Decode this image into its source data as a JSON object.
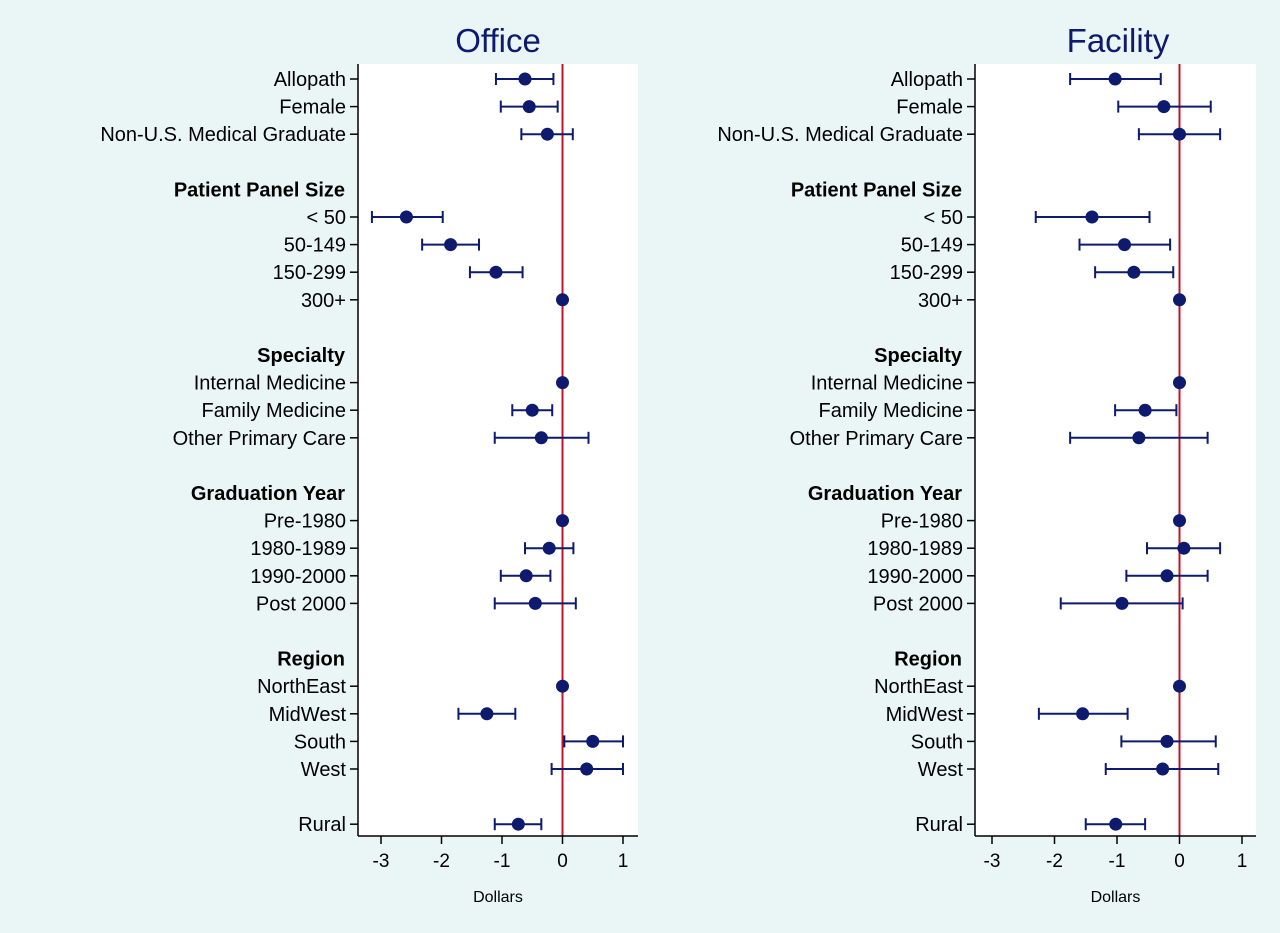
{
  "colors": {
    "background": "#eaf5f5",
    "plot_area": "#ffffff",
    "marker": "#0d1a6e",
    "reference_line": "#c0152a",
    "text": "#000000",
    "title": "#0d1a6e"
  },
  "chart_data": [
    {
      "type": "scatter",
      "style": "coefficient plot with horizontal 95% confidence intervals",
      "title": "Office",
      "xlabel": "Dollars",
      "xticks": [
        "-3",
        "-2",
        "-1",
        "0",
        "1"
      ],
      "xlim": [
        -3.3,
        1.25
      ],
      "reference_x": 0,
      "grid": false,
      "legend": "none",
      "rows": [
        {
          "label": "Allopath",
          "heading": false,
          "estimate": -0.62,
          "ci": [
            -1.1,
            -0.15
          ]
        },
        {
          "label": "Female",
          "heading": false,
          "estimate": -0.55,
          "ci": [
            -1.02,
            -0.08
          ]
        },
        {
          "label": "Non-U.S. Medical Graduate",
          "heading": false,
          "estimate": -0.25,
          "ci": [
            -0.68,
            0.17
          ]
        },
        {
          "label": "",
          "spacer": true
        },
        {
          "label": "Patient Panel Size",
          "heading": true
        },
        {
          "label": "< 50",
          "heading": false,
          "estimate": -2.58,
          "ci": [
            -3.15,
            -1.98
          ]
        },
        {
          "label": "50-149",
          "heading": false,
          "estimate": -1.85,
          "ci": [
            -2.32,
            -1.38
          ]
        },
        {
          "label": "150-299",
          "heading": false,
          "estimate": -1.1,
          "ci": [
            -1.53,
            -0.66
          ]
        },
        {
          "label": "300+",
          "heading": false,
          "estimate": 0,
          "ci": [
            0,
            0
          ]
        },
        {
          "label": "",
          "spacer": true
        },
        {
          "label": "Specialty",
          "heading": true
        },
        {
          "label": "Internal Medicine",
          "heading": false,
          "estimate": 0,
          "ci": [
            0,
            0
          ]
        },
        {
          "label": "Family Medicine",
          "heading": false,
          "estimate": -0.5,
          "ci": [
            -0.83,
            -0.17
          ]
        },
        {
          "label": "Other Primary Care",
          "heading": false,
          "estimate": -0.35,
          "ci": [
            -1.12,
            0.43
          ]
        },
        {
          "label": "",
          "spacer": true
        },
        {
          "label": "Graduation Year",
          "heading": true
        },
        {
          "label": "Pre-1980",
          "heading": false,
          "estimate": 0,
          "ci": [
            0,
            0
          ]
        },
        {
          "label": "1980-1989",
          "heading": false,
          "estimate": -0.22,
          "ci": [
            -0.62,
            0.18
          ]
        },
        {
          "label": "1990-2000",
          "heading": false,
          "estimate": -0.6,
          "ci": [
            -1.02,
            -0.2
          ]
        },
        {
          "label": "Post 2000",
          "heading": false,
          "estimate": -0.45,
          "ci": [
            -1.12,
            0.22
          ]
        },
        {
          "label": "",
          "spacer": true
        },
        {
          "label": "Region",
          "heading": true
        },
        {
          "label": "NorthEast",
          "heading": false,
          "estimate": 0,
          "ci": [
            0,
            0
          ]
        },
        {
          "label": "MidWest",
          "heading": false,
          "estimate": -1.25,
          "ci": [
            -1.72,
            -0.78
          ]
        },
        {
          "label": "South",
          "heading": false,
          "estimate": 0.5,
          "ci": [
            0.03,
            1.0
          ]
        },
        {
          "label": "West",
          "heading": false,
          "estimate": 0.4,
          "ci": [
            -0.18,
            1.0
          ]
        },
        {
          "label": "",
          "spacer": true
        },
        {
          "label": "Rural",
          "heading": false,
          "estimate": -0.73,
          "ci": [
            -1.12,
            -0.35
          ]
        }
      ]
    },
    {
      "type": "scatter",
      "style": "coefficient plot with horizontal 95% confidence intervals",
      "title": "Facility",
      "xlabel": "Dollars",
      "xticks": [
        "-3",
        "-2",
        "-1",
        "0",
        "1"
      ],
      "xlim": [
        -3.3,
        1.25
      ],
      "reference_x": 0,
      "grid": false,
      "legend": "none",
      "rows": [
        {
          "label": "Allopath",
          "heading": false,
          "estimate": -1.03,
          "ci": [
            -1.75,
            -0.3
          ]
        },
        {
          "label": "Female",
          "heading": false,
          "estimate": -0.25,
          "ci": [
            -0.98,
            0.5
          ]
        },
        {
          "label": "Non-U.S. Medical Graduate",
          "heading": false,
          "estimate": 0,
          "ci": [
            -0.65,
            0.65
          ]
        },
        {
          "label": "",
          "spacer": true
        },
        {
          "label": "Patient Panel Size",
          "heading": true
        },
        {
          "label": "< 50",
          "heading": false,
          "estimate": -1.4,
          "ci": [
            -2.3,
            -0.48
          ]
        },
        {
          "label": "50-149",
          "heading": false,
          "estimate": -0.88,
          "ci": [
            -1.6,
            -0.15
          ]
        },
        {
          "label": "150-299",
          "heading": false,
          "estimate": -0.73,
          "ci": [
            -1.35,
            -0.1
          ]
        },
        {
          "label": "300+",
          "heading": false,
          "estimate": 0,
          "ci": [
            0,
            0
          ]
        },
        {
          "label": "",
          "spacer": true
        },
        {
          "label": "Specialty",
          "heading": true
        },
        {
          "label": "Internal Medicine",
          "heading": false,
          "estimate": 0,
          "ci": [
            0,
            0
          ]
        },
        {
          "label": "Family Medicine",
          "heading": false,
          "estimate": -0.55,
          "ci": [
            -1.03,
            -0.05
          ]
        },
        {
          "label": "Other Primary Care",
          "heading": false,
          "estimate": -0.65,
          "ci": [
            -1.75,
            0.45
          ]
        },
        {
          "label": "",
          "spacer": true
        },
        {
          "label": "Graduation Year",
          "heading": true
        },
        {
          "label": "Pre-1980",
          "heading": false,
          "estimate": 0,
          "ci": [
            0,
            0
          ]
        },
        {
          "label": "1980-1989",
          "heading": false,
          "estimate": 0.07,
          "ci": [
            -0.52,
            0.65
          ]
        },
        {
          "label": "1990-2000",
          "heading": false,
          "estimate": -0.2,
          "ci": [
            -0.85,
            0.45
          ]
        },
        {
          "label": "Post 2000",
          "heading": false,
          "estimate": -0.92,
          "ci": [
            -1.9,
            0.05
          ]
        },
        {
          "label": "",
          "spacer": true
        },
        {
          "label": "Region",
          "heading": true
        },
        {
          "label": "NorthEast",
          "heading": false,
          "estimate": 0,
          "ci": [
            0,
            0
          ]
        },
        {
          "label": "MidWest",
          "heading": false,
          "estimate": -1.55,
          "ci": [
            -2.25,
            -0.83
          ]
        },
        {
          "label": "South",
          "heading": false,
          "estimate": -0.2,
          "ci": [
            -0.93,
            0.58
          ]
        },
        {
          "label": "West",
          "heading": false,
          "estimate": -0.27,
          "ci": [
            -1.18,
            0.62
          ]
        },
        {
          "label": "",
          "spacer": true
        },
        {
          "label": "Rural",
          "heading": false,
          "estimate": -1.02,
          "ci": [
            -1.5,
            -0.55
          ]
        }
      ]
    }
  ]
}
